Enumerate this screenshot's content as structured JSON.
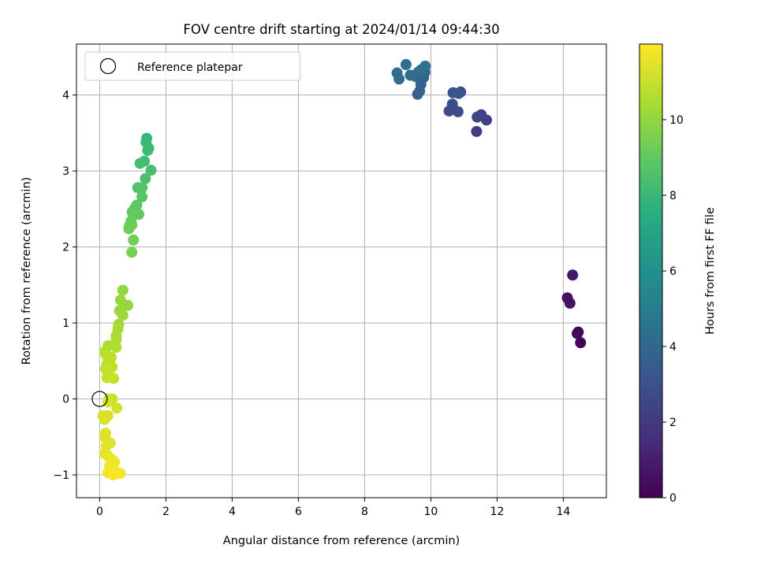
{
  "chart_data": {
    "type": "scatter",
    "title": "FOV centre drift starting at 2024/01/14 09:44:30",
    "xlabel": "Angular distance from reference (arcmin)",
    "ylabel": "Rotation from reference (arcmin)",
    "xlim": [
      -0.7,
      15.3
    ],
    "ylim": [
      -1.3,
      4.67
    ],
    "xticks": [
      0,
      2,
      4,
      6,
      8,
      10,
      12,
      14
    ],
    "yticks": [
      -1,
      0,
      1,
      2,
      3,
      4
    ],
    "xtick_labels": [
      "0",
      "2",
      "4",
      "6",
      "8",
      "10",
      "12",
      "14"
    ],
    "ytick_labels": [
      "−1",
      "0",
      "1",
      "2",
      "3",
      "4"
    ],
    "grid": true,
    "colormap": "viridis",
    "colorbar": {
      "label": "Hours from first FF file",
      "range": [
        0,
        12
      ],
      "ticks": [
        0,
        2,
        4,
        6,
        8,
        10
      ],
      "tick_labels": [
        "0",
        "2",
        "4",
        "6",
        "8",
        "10"
      ]
    },
    "legend": {
      "position": "top-left",
      "entries": [
        "Reference platepar"
      ]
    },
    "reference_point": {
      "x": 0,
      "y": 0
    },
    "points": [
      {
        "x": 14.52,
        "y": 0.74,
        "t": 0.1
      },
      {
        "x": 14.45,
        "y": 0.88,
        "t": 0.2
      },
      {
        "x": 14.42,
        "y": 0.86,
        "t": 0.3
      },
      {
        "x": 14.12,
        "y": 1.33,
        "t": 0.5
      },
      {
        "x": 14.2,
        "y": 1.26,
        "t": 0.6
      },
      {
        "x": 14.28,
        "y": 1.63,
        "t": 0.8
      },
      {
        "x": 11.38,
        "y": 3.52,
        "t": 2.2
      },
      {
        "x": 11.68,
        "y": 3.67,
        "t": 2.3
      },
      {
        "x": 11.52,
        "y": 3.74,
        "t": 2.4
      },
      {
        "x": 11.4,
        "y": 3.71,
        "t": 2.5
      },
      {
        "x": 10.82,
        "y": 3.78,
        "t": 2.7
      },
      {
        "x": 10.55,
        "y": 3.79,
        "t": 2.8
      },
      {
        "x": 10.65,
        "y": 3.88,
        "t": 2.9
      },
      {
        "x": 10.9,
        "y": 4.04,
        "t": 3.0
      },
      {
        "x": 10.67,
        "y": 4.03,
        "t": 3.1
      },
      {
        "x": 10.84,
        "y": 4.02,
        "t": 3.2
      },
      {
        "x": 9.6,
        "y": 4.01,
        "t": 3.6
      },
      {
        "x": 9.66,
        "y": 4.05,
        "t": 3.7
      },
      {
        "x": 9.7,
        "y": 4.14,
        "t": 3.8
      },
      {
        "x": 9.78,
        "y": 4.23,
        "t": 3.9
      },
      {
        "x": 9.82,
        "y": 4.3,
        "t": 4.0
      },
      {
        "x": 9.55,
        "y": 4.24,
        "t": 4.1
      },
      {
        "x": 9.38,
        "y": 4.26,
        "t": 4.2
      },
      {
        "x": 9.62,
        "y": 4.3,
        "t": 4.2
      },
      {
        "x": 9.04,
        "y": 4.21,
        "t": 4.3
      },
      {
        "x": 8.98,
        "y": 4.29,
        "t": 4.3
      },
      {
        "x": 9.25,
        "y": 4.4,
        "t": 4.4
      },
      {
        "x": 9.83,
        "y": 4.38,
        "t": 4.5
      },
      {
        "x": 9.7,
        "y": 4.33,
        "t": 4.4
      },
      {
        "x": 1.42,
        "y": 3.43,
        "t": 8.0
      },
      {
        "x": 1.4,
        "y": 3.38,
        "t": 8.1
      },
      {
        "x": 1.48,
        "y": 3.3,
        "t": 8.2
      },
      {
        "x": 1.45,
        "y": 3.27,
        "t": 8.2
      },
      {
        "x": 1.35,
        "y": 3.13,
        "t": 8.3
      },
      {
        "x": 1.22,
        "y": 3.1,
        "t": 8.4
      },
      {
        "x": 1.55,
        "y": 3.01,
        "t": 8.5
      },
      {
        "x": 1.38,
        "y": 2.9,
        "t": 8.5
      },
      {
        "x": 1.15,
        "y": 2.78,
        "t": 8.6
      },
      {
        "x": 1.28,
        "y": 2.78,
        "t": 8.7
      },
      {
        "x": 1.28,
        "y": 2.66,
        "t": 8.8
      },
      {
        "x": 1.12,
        "y": 2.55,
        "t": 8.9
      },
      {
        "x": 1.05,
        "y": 2.5,
        "t": 9.0
      },
      {
        "x": 1.18,
        "y": 2.43,
        "t": 9.0
      },
      {
        "x": 0.98,
        "y": 2.46,
        "t": 9.1
      },
      {
        "x": 0.95,
        "y": 2.34,
        "t": 9.2
      },
      {
        "x": 0.9,
        "y": 2.28,
        "t": 9.2
      },
      {
        "x": 0.97,
        "y": 2.29,
        "t": 9.3
      },
      {
        "x": 0.88,
        "y": 2.24,
        "t": 9.3
      },
      {
        "x": 1.02,
        "y": 2.09,
        "t": 9.4
      },
      {
        "x": 0.97,
        "y": 1.93,
        "t": 9.5
      },
      {
        "x": 0.7,
        "y": 1.43,
        "t": 10.0
      },
      {
        "x": 0.63,
        "y": 1.3,
        "t": 10.1
      },
      {
        "x": 0.85,
        "y": 1.23,
        "t": 10.1
      },
      {
        "x": 0.6,
        "y": 1.16,
        "t": 10.2
      },
      {
        "x": 0.7,
        "y": 1.1,
        "t": 10.2
      },
      {
        "x": 0.57,
        "y": 0.98,
        "t": 10.3
      },
      {
        "x": 0.55,
        "y": 0.92,
        "t": 10.4
      },
      {
        "x": 0.5,
        "y": 0.83,
        "t": 10.4
      },
      {
        "x": 0.5,
        "y": 0.78,
        "t": 10.5
      },
      {
        "x": 0.25,
        "y": 0.7,
        "t": 10.5
      },
      {
        "x": 0.45,
        "y": 0.7,
        "t": 10.6
      },
      {
        "x": 0.5,
        "y": 0.68,
        "t": 10.6
      },
      {
        "x": 0.15,
        "y": 0.62,
        "t": 10.7
      },
      {
        "x": 0.2,
        "y": 0.58,
        "t": 10.7
      },
      {
        "x": 0.35,
        "y": 0.55,
        "t": 10.8
      },
      {
        "x": 0.3,
        "y": 0.5,
        "t": 10.8
      },
      {
        "x": 0.22,
        "y": 0.46,
        "t": 10.8
      },
      {
        "x": 0.38,
        "y": 0.42,
        "t": 10.9
      },
      {
        "x": 0.18,
        "y": 0.4,
        "t": 10.9
      },
      {
        "x": 0.25,
        "y": 0.33,
        "t": 10.9
      },
      {
        "x": 0.42,
        "y": 0.27,
        "t": 11.0
      },
      {
        "x": 0.22,
        "y": 0.28,
        "t": 11.0
      },
      {
        "x": 0.28,
        "y": 0.0,
        "t": 11.1
      },
      {
        "x": 0.38,
        "y": 0.0,
        "t": 11.1
      },
      {
        "x": 0.25,
        "y": -0.04,
        "t": 11.2
      },
      {
        "x": 0.52,
        "y": -0.12,
        "t": 11.2
      },
      {
        "x": 0.1,
        "y": -0.22,
        "t": 11.3
      },
      {
        "x": 0.25,
        "y": -0.22,
        "t": 11.3
      },
      {
        "x": 0.15,
        "y": -0.27,
        "t": 11.3
      },
      {
        "x": 0.18,
        "y": -0.45,
        "t": 11.4
      },
      {
        "x": 0.15,
        "y": -0.5,
        "t": 11.4
      },
      {
        "x": 0.32,
        "y": -0.58,
        "t": 11.5
      },
      {
        "x": 0.2,
        "y": -0.62,
        "t": 11.5
      },
      {
        "x": 0.15,
        "y": -0.72,
        "t": 11.6
      },
      {
        "x": 0.25,
        "y": -0.75,
        "t": 11.6
      },
      {
        "x": 0.38,
        "y": -0.8,
        "t": 11.7
      },
      {
        "x": 0.45,
        "y": -0.83,
        "t": 11.7
      },
      {
        "x": 0.3,
        "y": -0.88,
        "t": 11.7
      },
      {
        "x": 0.42,
        "y": -0.92,
        "t": 11.8
      },
      {
        "x": 0.25,
        "y": -0.97,
        "t": 11.8
      },
      {
        "x": 0.62,
        "y": -0.98,
        "t": 11.9
      },
      {
        "x": 0.42,
        "y": -1.0,
        "t": 11.9
      }
    ]
  }
}
